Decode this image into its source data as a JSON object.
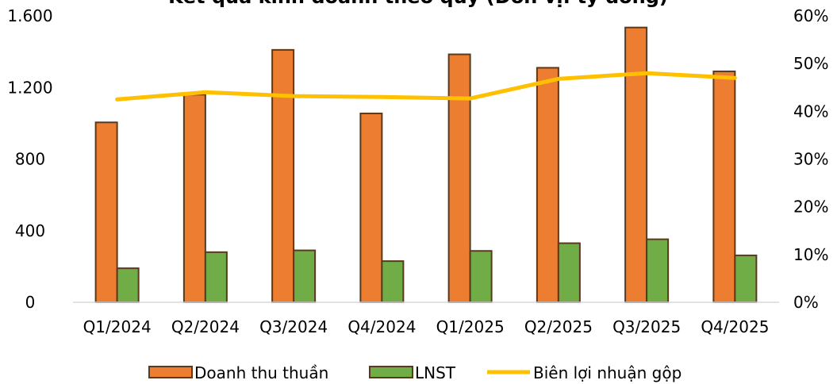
{
  "chart_data": {
    "type": "bar",
    "title": "Kết quả kinh doanh theo quý (Đơn vị: tỷ đồng)",
    "categories": [
      "Q1/2024",
      "Q2/2024",
      "Q3/2024",
      "Q4/2024",
      "Q1/2025",
      "Q2/2025",
      "Q3/2025",
      "Q4/2025"
    ],
    "series": [
      {
        "name": "Doanh thu thuần",
        "type": "bar",
        "axis": "left",
        "color": "#ED7D31",
        "values": [
          1005,
          1160,
          1410,
          1055,
          1385,
          1310,
          1535,
          1290
        ]
      },
      {
        "name": "LNST",
        "type": "bar",
        "axis": "left",
        "color": "#70AD47",
        "values": [
          190,
          280,
          290,
          230,
          287,
          330,
          352,
          262
        ]
      },
      {
        "name": "Biên lợi nhuận gộp",
        "type": "line",
        "axis": "right",
        "color": "#FFC000",
        "values": [
          0.425,
          0.44,
          0.432,
          0.43,
          0.427,
          0.468,
          0.48,
          0.47
        ]
      }
    ],
    "left_axis": {
      "ylim": [
        0,
        1600
      ],
      "ticks": [
        0,
        400,
        800,
        1200,
        1600
      ],
      "tick_labels": [
        "0",
        "400",
        "800",
        "1.200",
        "1.600"
      ]
    },
    "right_axis": {
      "ylim": [
        0,
        0.6
      ],
      "ticks": [
        0,
        0.1,
        0.2,
        0.3,
        0.4,
        0.5,
        0.6
      ],
      "tick_labels": [
        "0%",
        "10%",
        "20%",
        "30%",
        "40%",
        "50%",
        "60%"
      ]
    },
    "grid": false,
    "legend_position": "bottom",
    "bar_outline_color": "#5A3A1A",
    "axis_line_color": "#D9D9D9"
  }
}
